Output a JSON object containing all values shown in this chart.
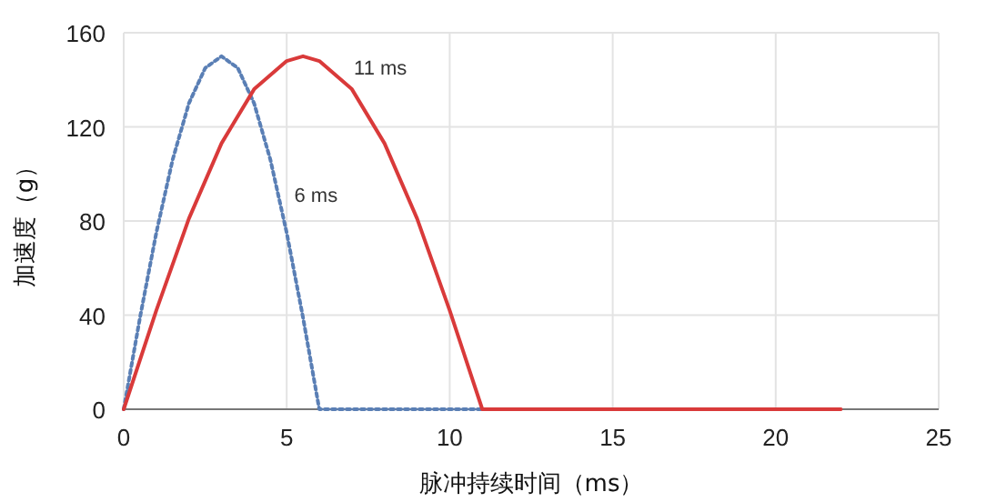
{
  "chart_data": {
    "type": "line",
    "xlabel": "脉冲持续时间（ms）",
    "ylabel": "加速度（g）",
    "xlim": [
      0,
      25
    ],
    "xticks": [
      0,
      5,
      10,
      15,
      20,
      25
    ],
    "ylim": [
      0,
      160
    ],
    "yticks": [
      0,
      40,
      80,
      120,
      160
    ],
    "grid": true,
    "legend": false,
    "marker": "none",
    "series": [
      {
        "name": "6 ms",
        "color": "#5a7fb5",
        "line_style": "dotted",
        "x": [
          0,
          0.5,
          1,
          1.5,
          2,
          2.5,
          3,
          3.5,
          4,
          4.5,
          5,
          5.5,
          6,
          22
        ],
        "values": [
          0,
          39,
          75,
          106,
          130,
          145,
          150,
          145,
          130,
          106,
          75,
          39,
          0,
          0
        ]
      },
      {
        "name": "11 ms",
        "color": "#d93a3a",
        "line_style": "solid",
        "x": [
          0,
          1,
          2,
          3,
          4,
          5,
          5.5,
          6,
          7,
          8,
          9,
          10,
          11,
          22
        ],
        "values": [
          0,
          42,
          81,
          113,
          136,
          148,
          150,
          148,
          136,
          113,
          81,
          42,
          0,
          0
        ]
      }
    ]
  }
}
